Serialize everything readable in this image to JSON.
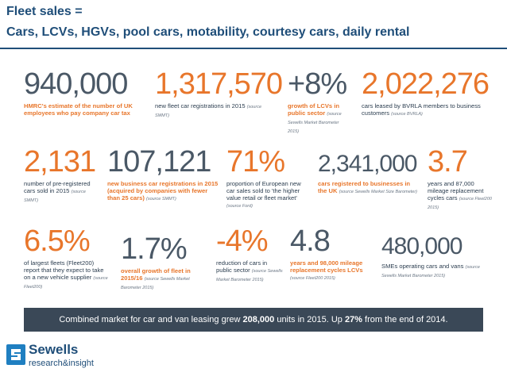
{
  "header": {
    "line1": "Fleet sales =",
    "line2": "Cars, LCVs, HGVs, pool cars, motability, courtesy cars, daily rental"
  },
  "stats": [
    {
      "value": "940,000",
      "desc_bold": "HMRC's estimate of the number of UK employees who pay company car tax",
      "desc": "",
      "src": ""
    },
    {
      "value": "1,317,570",
      "desc_bold": "",
      "desc": "new fleet car registrations in 2015",
      "src": "(source SMMT)"
    },
    {
      "value": "+8%",
      "desc_bold": "growth of LCVs in public sector",
      "desc": "",
      "src": "(source Sewells Market Barometer 2015)"
    },
    {
      "value": "2,022,276",
      "desc_bold": "",
      "desc": "cars leased by BVRLA members to business customers",
      "src": "(source BVRLA)"
    },
    {
      "value": "2,131",
      "desc_bold": "",
      "desc": "number of pre-registered cars sold in 2015",
      "src": "(source SMMT)"
    },
    {
      "value": "107,121",
      "desc_bold": "new business car registrations in 2015 (acquired by companies with fewer than 25 cars)",
      "desc": "",
      "src": "(source SMMT)"
    },
    {
      "value": "71%",
      "desc_bold": "",
      "desc": "proportion of European new car sales sold to 'the higher value retail or fleet market'",
      "src": "(source Ford)"
    },
    {
      "value": "2,341,000",
      "desc_bold": "cars registered to businesses in the UK",
      "desc": "",
      "src": "(source Sewells Market Size Barometer)"
    },
    {
      "value": "3.7",
      "desc_bold": "",
      "desc": "years and 87,000 mileage replacement cycles cars",
      "src": "(source Fleet200 2015)"
    },
    {
      "value": "6.5%",
      "desc_bold": "",
      "desc": "of largest fleets (Fleet200) report that they expect to take on a new vehicle supplier",
      "src": "(source Fleet200)"
    },
    {
      "value": "1.7%",
      "desc_bold": "overall growth of fleet in 2015/16",
      "desc": "",
      "src": "(source Sewells Market Barometer 2015)"
    },
    {
      "value": "-4%",
      "desc_bold": "",
      "desc": "reduction of cars in public sector",
      "src": "(source Sewells Market Barometer 2015)"
    },
    {
      "value": "4.8",
      "desc_bold": "years and 98,000 mileage replacement cycles LCVs",
      "desc": "",
      "src": "(source Fleet200 2015)"
    },
    {
      "value": "480,000",
      "desc_bold": "",
      "desc": "SMEs operating cars and vans",
      "src": "(source Sewells Market Barometer 2015)"
    }
  ],
  "banner": {
    "part1": "Combined market for car and van leasing grew ",
    "bold1": "208,000",
    "part2": " units in 2015. Up ",
    "bold2": "27%",
    "part3": " from the end of 2014."
  },
  "logo": {
    "name": "Sewells",
    "tagline": "research&insight"
  },
  "colors": {
    "title": "#1f4e79",
    "orange": "#e8762b",
    "gray": "#4a5866",
    "banner": "#3a4857"
  }
}
